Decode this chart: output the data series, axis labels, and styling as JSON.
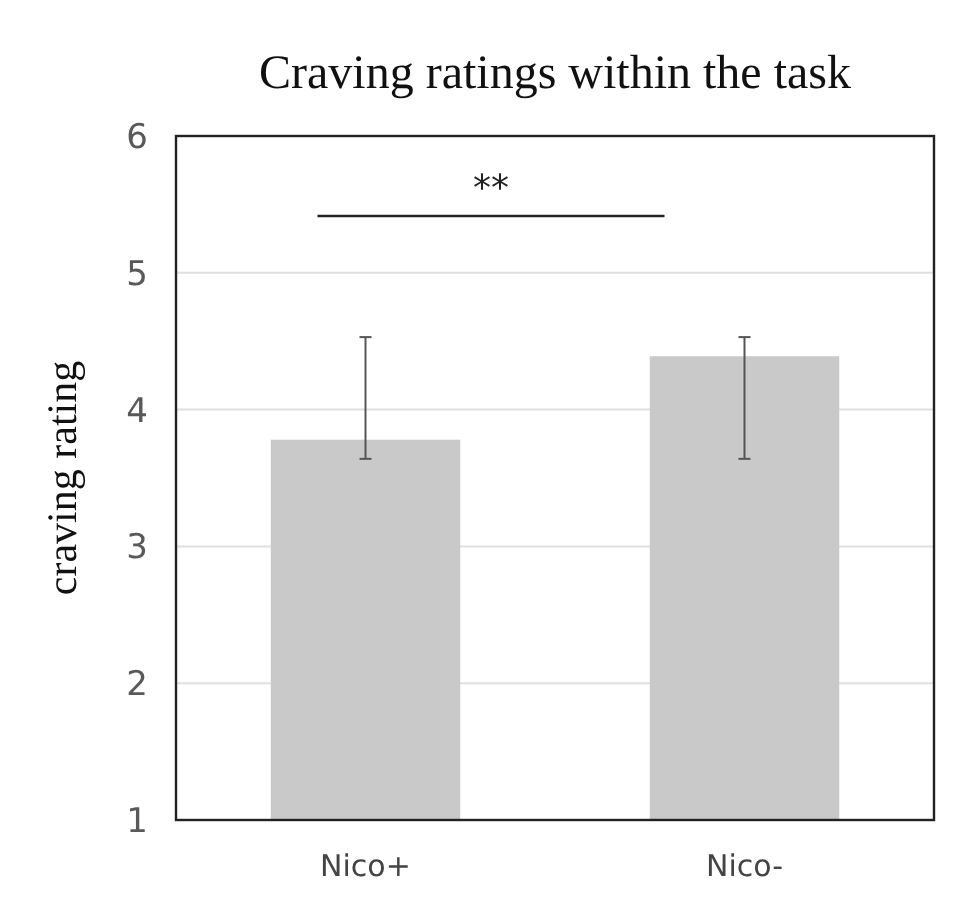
{
  "chart_data": {
    "type": "bar",
    "title": "Craving ratings within the task",
    "ylabel": "craving rating",
    "categories": [
      "Nico+",
      "Nico-"
    ],
    "values": [
      3.78,
      4.39
    ],
    "errors": [
      [
        3.64,
        4.53
      ],
      [
        3.64,
        4.53
      ]
    ],
    "color": "#c9c9c9",
    "ylim": [
      1,
      6
    ],
    "yticks": [
      1,
      2,
      3,
      4,
      5,
      6
    ],
    "grid": "y",
    "annotations": [
      "**"
    ]
  }
}
